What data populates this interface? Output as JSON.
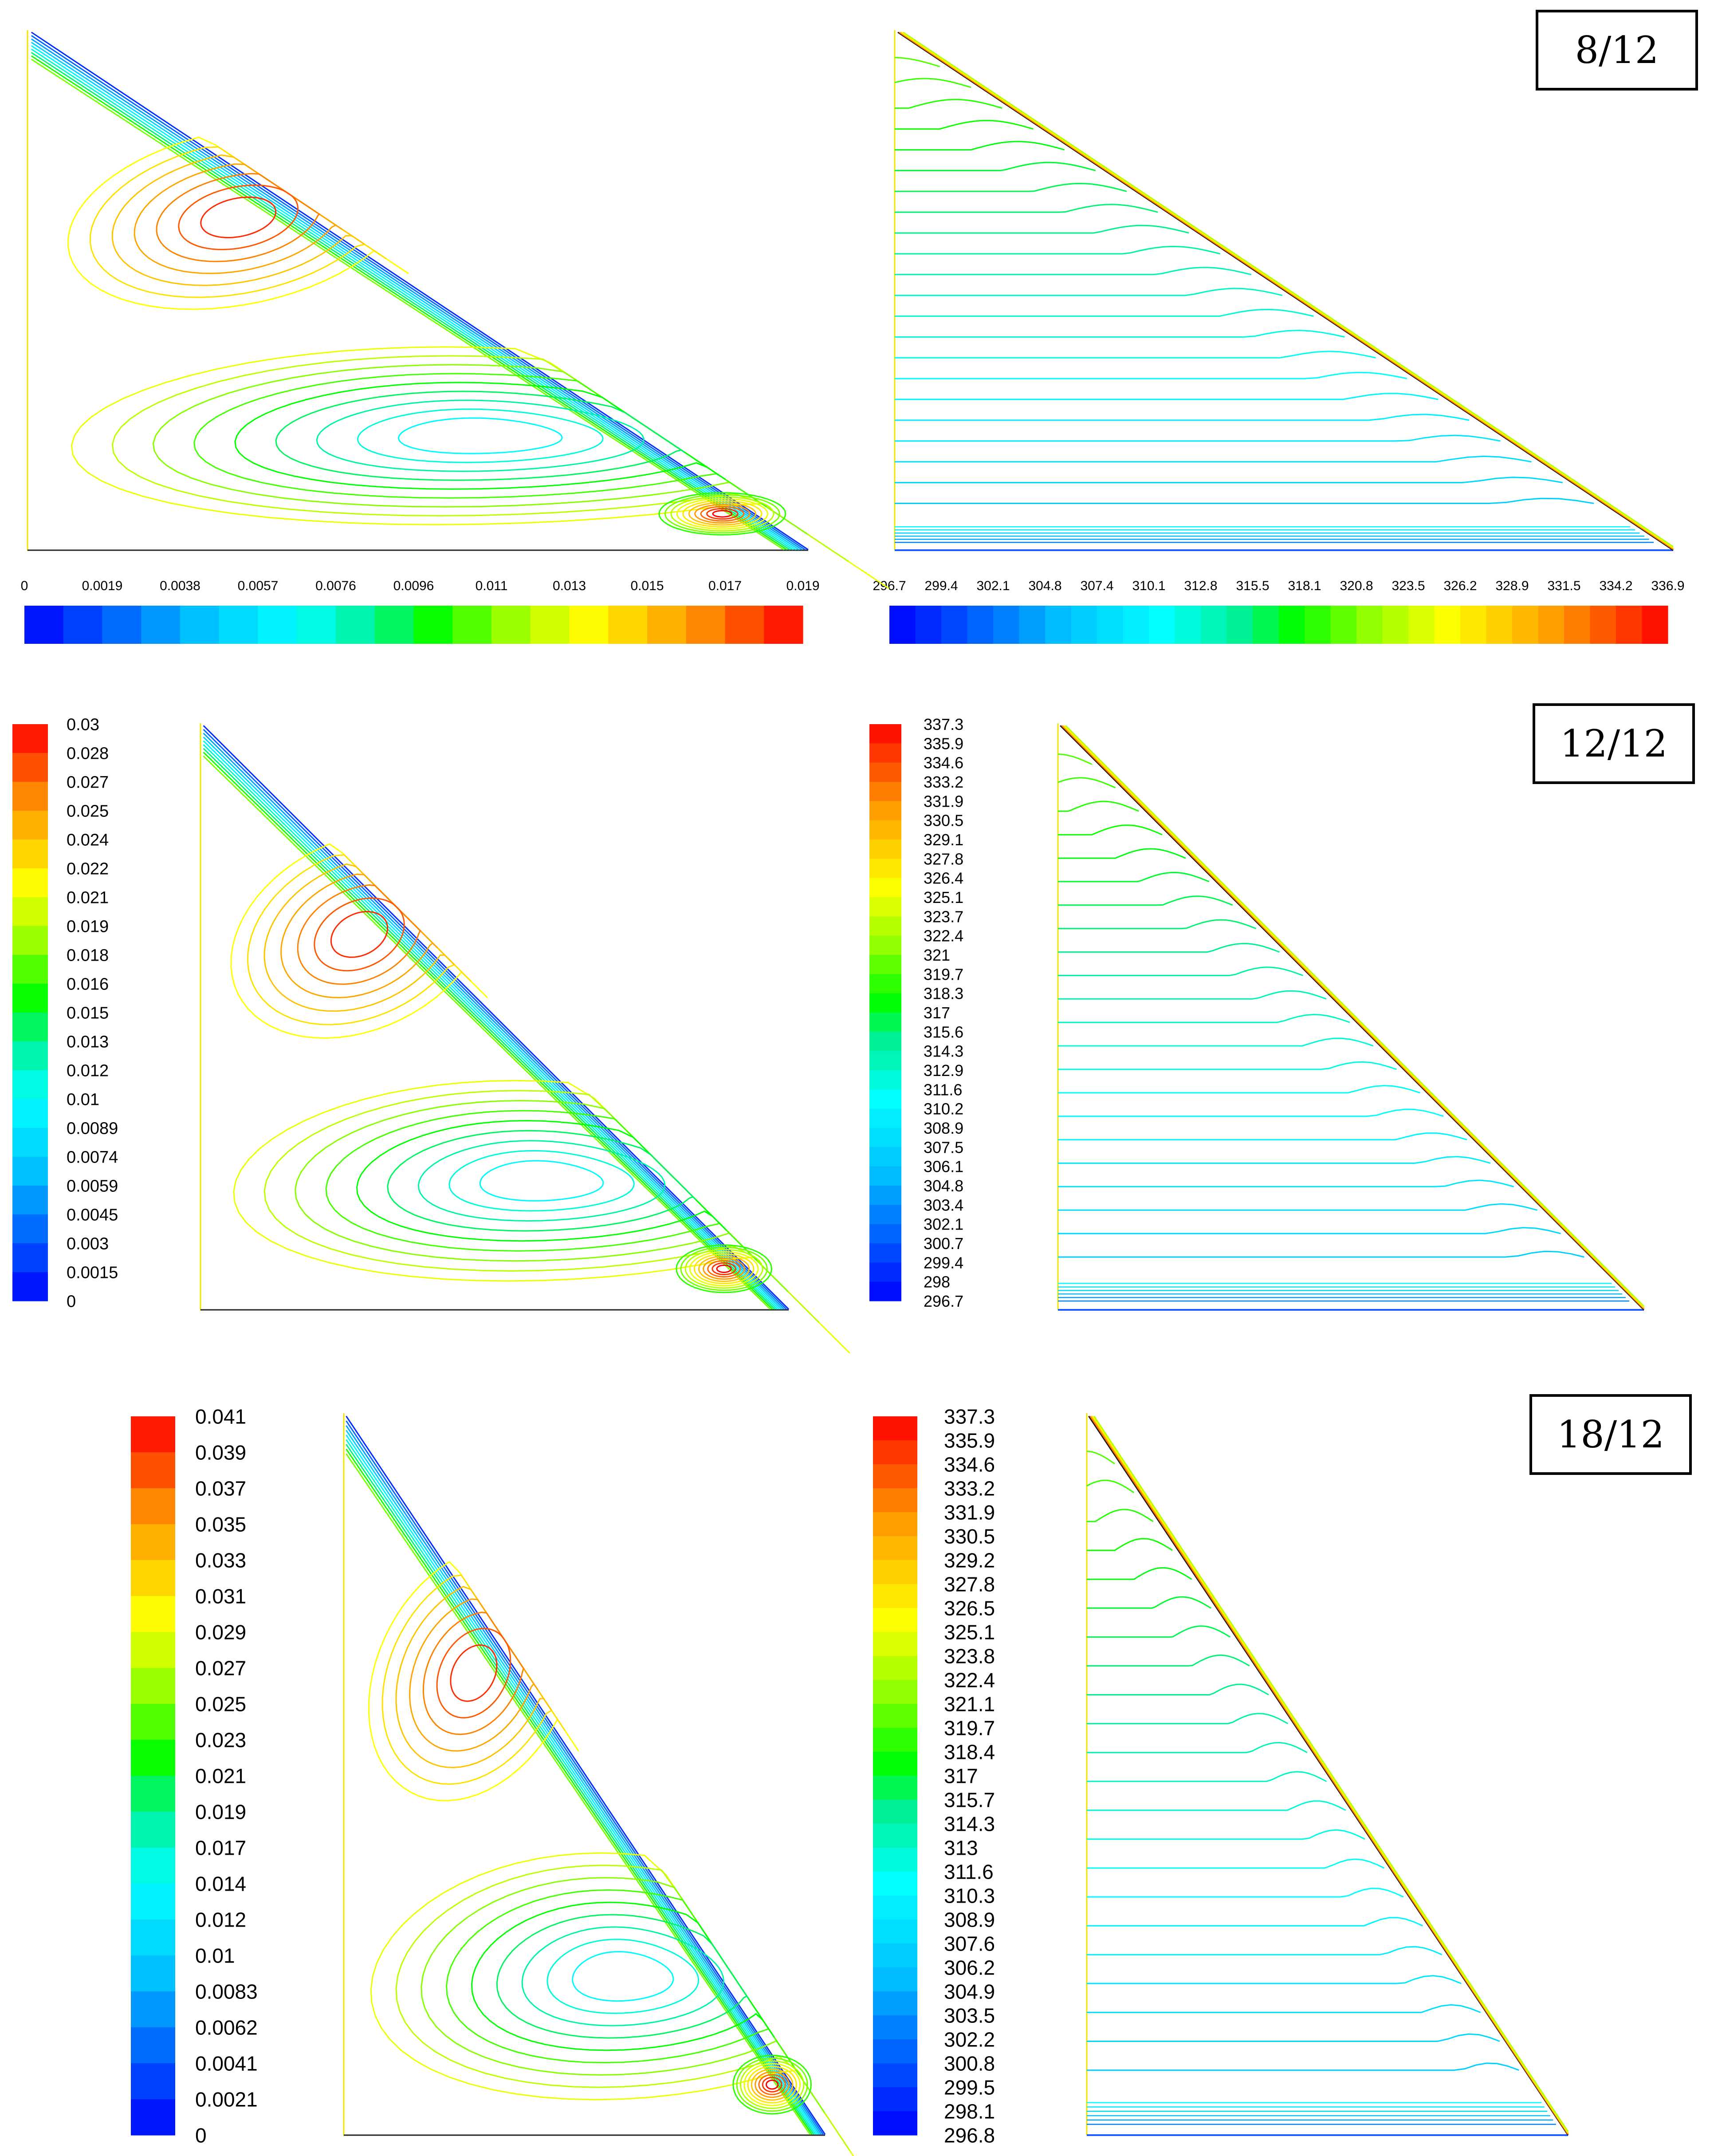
{
  "panels": [
    {
      "case_label": "8/12",
      "streamfunction_legend": {
        "orientation": "horizontal",
        "ticks": [
          "0",
          "0.0019",
          "0.0038",
          "0.0057",
          "0.0076",
          "0.0096",
          "0.011",
          "0.013",
          "0.015",
          "0.017",
          "0.019"
        ]
      },
      "temperature_legend": {
        "orientation": "horizontal",
        "ticks": [
          "296.7",
          "299.4",
          "302.1",
          "304.8",
          "307.4",
          "310.1",
          "312.8",
          "315.5",
          "318.1",
          "320.8",
          "323.5",
          "326.2",
          "328.9",
          "331.5",
          "334.2",
          "336.9"
        ]
      }
    },
    {
      "case_label": "12/12",
      "streamfunction_legend": {
        "orientation": "vertical",
        "ticks": [
          "0.03",
          "0.028",
          "0.027",
          "0.025",
          "0.024",
          "0.022",
          "0.021",
          "0.019",
          "0.018",
          "0.016",
          "0.015",
          "0.013",
          "0.012",
          "0.01",
          "0.0089",
          "0.0074",
          "0.0059",
          "0.0045",
          "0.003",
          "0.0015",
          "0"
        ]
      },
      "temperature_legend": {
        "orientation": "vertical",
        "ticks": [
          "337.3",
          "335.9",
          "334.6",
          "333.2",
          "331.9",
          "330.5",
          "329.1",
          "327.8",
          "326.4",
          "325.1",
          "323.7",
          "322.4",
          "321",
          "319.7",
          "318.3",
          "317",
          "315.6",
          "314.3",
          "312.9",
          "311.6",
          "310.2",
          "308.9",
          "307.5",
          "306.1",
          "304.8",
          "303.4",
          "302.1",
          "300.7",
          "299.4",
          "298",
          "296.7"
        ]
      }
    },
    {
      "case_label": "18/12",
      "streamfunction_legend": {
        "orientation": "vertical",
        "ticks": [
          "0.041",
          "0.039",
          "0.037",
          "0.035",
          "0.033",
          "0.031",
          "0.029",
          "0.027",
          "0.025",
          "0.023",
          "0.021",
          "0.019",
          "0.017",
          "0.014",
          "0.012",
          "0.01",
          "0.0083",
          "0.0062",
          "0.0041",
          "0.0021",
          "0"
        ]
      },
      "temperature_legend": {
        "orientation": "vertical",
        "ticks": [
          "337.3",
          "335.9",
          "334.6",
          "333.2",
          "331.9",
          "330.5",
          "329.2",
          "327.8",
          "326.5",
          "325.1",
          "323.8",
          "322.4",
          "321.1",
          "319.7",
          "318.4",
          "317",
          "315.7",
          "314.3",
          "313",
          "311.6",
          "310.3",
          "308.9",
          "307.6",
          "306.2",
          "304.9",
          "303.5",
          "302.2",
          "300.8",
          "299.5",
          "298.1",
          "296.8"
        ]
      }
    }
  ]
}
